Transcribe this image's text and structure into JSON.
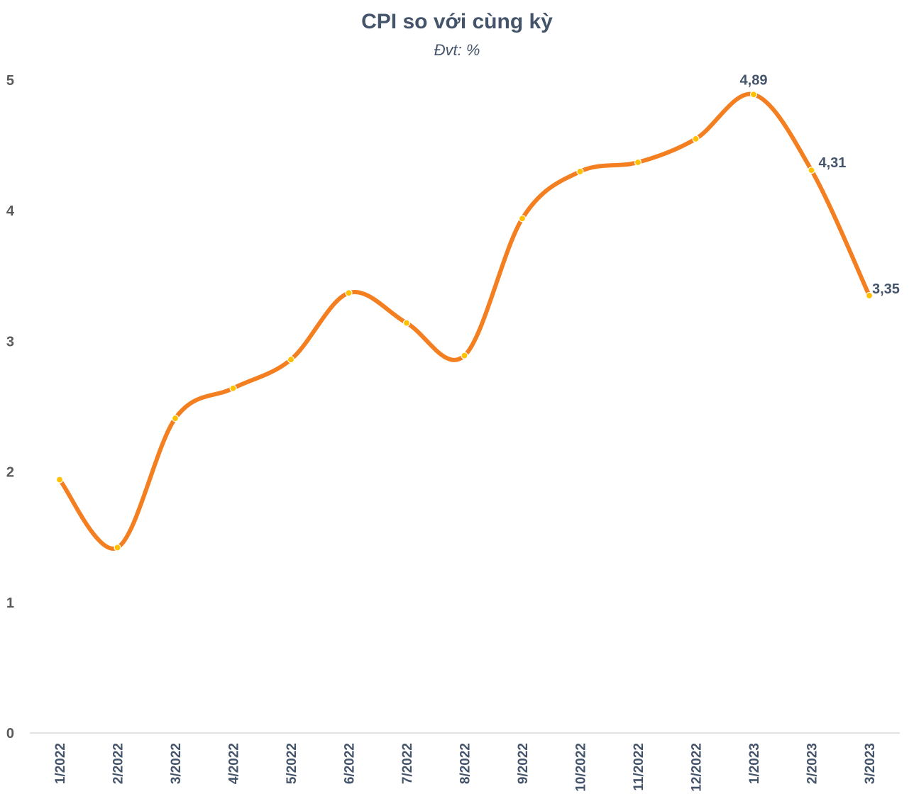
{
  "title": "CPI so với cùng kỳ",
  "subtitle": "Đvt: %",
  "chart_data": {
    "type": "line",
    "title": "CPI so với cùng kỳ",
    "subtitle": "Đvt: %",
    "xlabel": "",
    "ylabel": "",
    "categories": [
      "1/2022",
      "2/2022",
      "3/2022",
      "4/2022",
      "5/2022",
      "6/2022",
      "7/2022",
      "8/2022",
      "9/2022",
      "10/2022",
      "11/2022",
      "12/2022",
      "1/2023",
      "2/2023",
      "3/2023"
    ],
    "series": [
      {
        "name": "CPI so với cùng kỳ",
        "values": [
          1.94,
          1.42,
          2.41,
          2.64,
          2.86,
          3.37,
          3.14,
          2.89,
          3.94,
          4.3,
          4.37,
          4.55,
          4.89,
          4.31,
          3.35
        ]
      }
    ],
    "data_labels": [
      {
        "index": 12,
        "text": "4,89"
      },
      {
        "index": 13,
        "text": "4,31"
      },
      {
        "index": 14,
        "text": "3,35"
      }
    ],
    "yticks": [
      "0",
      "1",
      "2",
      "3",
      "4",
      "5"
    ],
    "ylim": [
      0,
      5
    ],
    "grid": false,
    "legend": "none",
    "colors": {
      "line": "#f47f20",
      "marker": "#ffc000",
      "axis": "#d9d9d9",
      "text": "#44546a"
    }
  }
}
